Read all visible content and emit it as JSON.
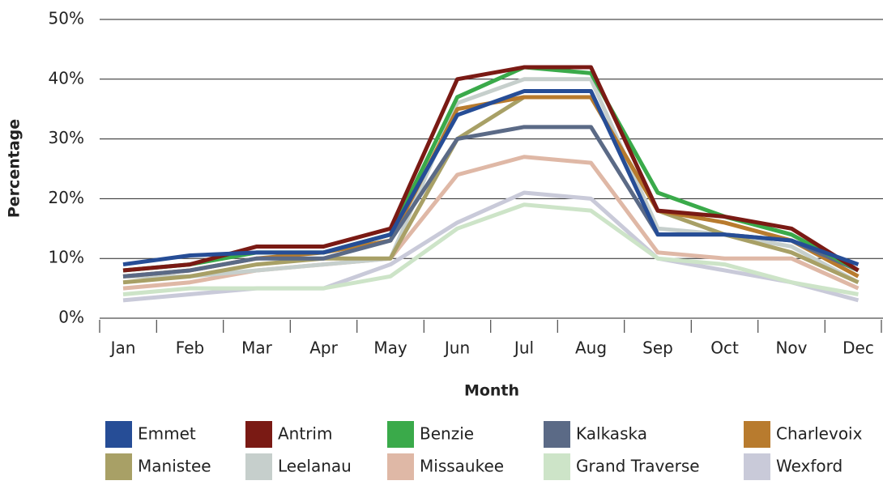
{
  "chart_data": {
    "type": "line",
    "x_label": "Month",
    "y_label": "Percentage",
    "categories": [
      "Jan",
      "Feb",
      "Mar",
      "Apr",
      "May",
      "Jun",
      "Jul",
      "Aug",
      "Sep",
      "Oct",
      "Nov",
      "Dec"
    ],
    "ylim": [
      0,
      50
    ],
    "yticks": [
      {
        "value": 0,
        "label": "0%"
      },
      {
        "value": 10,
        "label": "10%"
      },
      {
        "value": 20,
        "label": "20%"
      },
      {
        "value": 30,
        "label": "30%"
      },
      {
        "value": 40,
        "label": "40%"
      },
      {
        "value": 50,
        "label": "50%"
      }
    ],
    "grid": true,
    "series": [
      {
        "name": "Emmet",
        "color": "#264d96",
        "values": [
          9,
          10.5,
          11,
          11,
          14,
          34,
          38,
          38,
          14,
          14,
          13,
          9
        ]
      },
      {
        "name": "Antrim",
        "color": "#7a1a14",
        "values": [
          8,
          9,
          12,
          12,
          15,
          40,
          42,
          42,
          18,
          17,
          15,
          8
        ]
      },
      {
        "name": "Benzie",
        "color": "#3aaa4a",
        "values": [
          8,
          9,
          11,
          11,
          14,
          37,
          42,
          41,
          21,
          17,
          14,
          8
        ]
      },
      {
        "name": "Kalkaska",
        "color": "#5b6a86",
        "values": [
          7,
          8,
          10,
          10,
          13,
          30,
          32,
          32,
          14,
          14,
          13,
          8
        ]
      },
      {
        "name": "Charlevoix",
        "color": "#b87b2e",
        "values": [
          7,
          8,
          10,
          11,
          13,
          35,
          37,
          37,
          18,
          16,
          13,
          7
        ]
      },
      {
        "name": "Manistee",
        "color": "#a8a066",
        "values": [
          6,
          7,
          9,
          10,
          10,
          30,
          37,
          37,
          18,
          14,
          11,
          6
        ]
      },
      {
        "name": "Leelanau",
        "color": "#c6cfcc",
        "values": [
          7,
          7,
          8,
          9,
          10,
          36,
          40,
          40,
          15,
          14,
          12,
          6
        ]
      },
      {
        "name": "Missaukee",
        "color": "#dfb8a6",
        "values": [
          5,
          6,
          8,
          9,
          10,
          24,
          27,
          26,
          11,
          10,
          10,
          5
        ]
      },
      {
        "name": "Grand Traverse",
        "color": "#cde4c8",
        "values": [
          4,
          5,
          5,
          5,
          7,
          15,
          19,
          18,
          10,
          9,
          6,
          4
        ]
      },
      {
        "name": "Wexford",
        "color": "#c9cad9",
        "values": [
          3,
          4,
          5,
          5,
          9,
          16,
          21,
          20,
          10,
          8,
          6,
          3
        ]
      }
    ]
  }
}
